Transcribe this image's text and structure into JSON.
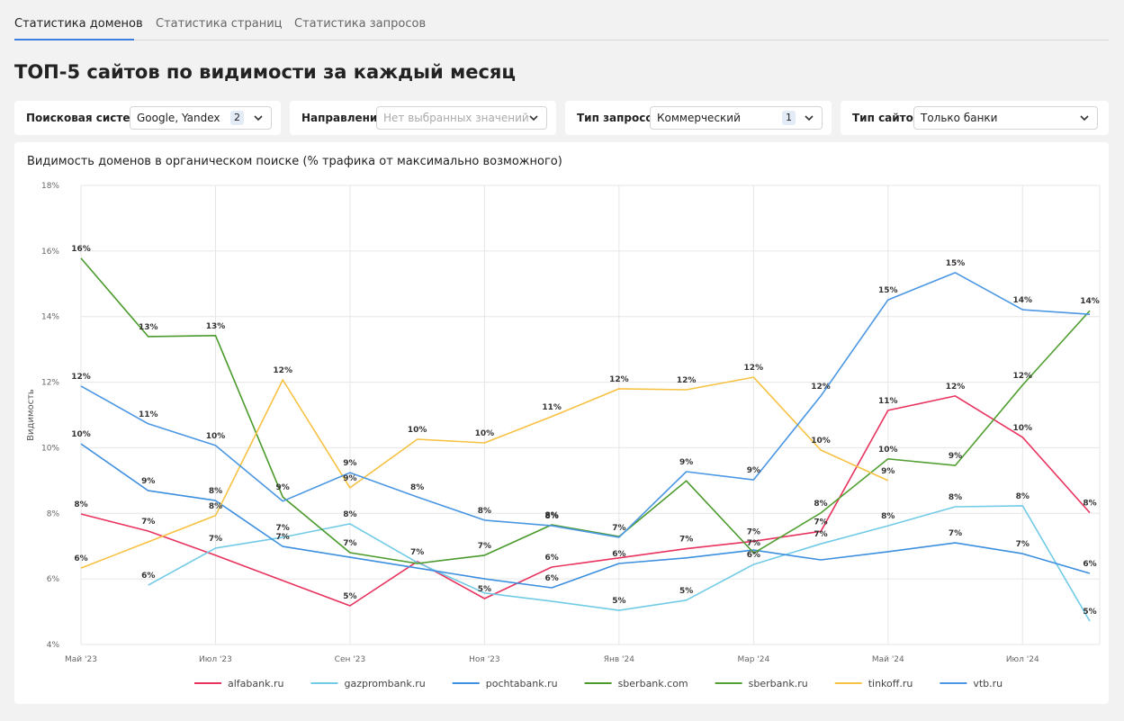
{
  "tabs": [
    "Статистика доменов",
    "Статистика страниц",
    "Статистика запросов"
  ],
  "header": {
    "title": "ТОП-5 сайтов по видимости за каждый месяц"
  },
  "filters": [
    {
      "label": "Поисковая система",
      "value": "Google, Yandex",
      "count": 2
    },
    {
      "label": "Направление",
      "placeholder": "Нет выбранных значений"
    },
    {
      "label": "Тип запросов",
      "value": "Коммерческий",
      "count": 1
    },
    {
      "label": "Тип сайтов",
      "value": "Только банки"
    }
  ],
  "chart_data": {
    "type": "line",
    "title": "Видимость доменов в органическом поиске (% трафика от максимально возможного)",
    "y_label": "Видимость",
    "categories": [
      "Май '23",
      null,
      "Июл '23",
      null,
      "Сен '23",
      null,
      "Ноя '23",
      null,
      "Янв '24",
      null,
      "Мар '24",
      null,
      "Май '24",
      null,
      "Июл '24",
      null
    ],
    "ylim": [
      4,
      18
    ],
    "yticks": [
      {
        "value": 4,
        "label": "4%"
      },
      {
        "value": 6,
        "label": "6%"
      },
      {
        "value": 8,
        "label": "8%"
      },
      {
        "value": 10,
        "label": "10%"
      },
      {
        "value": 12,
        "label": "12%"
      },
      {
        "value": 14,
        "label": "14%"
      },
      {
        "value": 16,
        "label": "16%"
      },
      {
        "value": 18,
        "label": "18%"
      }
    ],
    "grid": true,
    "legend": "bottom",
    "series": [
      {
        "name": "alfabank.ru",
        "color": "#e8335f",
        "values": [
          7.98,
          7.46,
          6.72,
          5.95,
          5.18,
          6.53,
          5.4,
          6.36,
          6.64,
          6.92,
          7.15,
          7.45,
          11.14,
          11.58,
          10.32,
          8.02
        ],
        "value_labels": [
          "8%",
          "7%",
          null,
          null,
          "5%",
          "7%",
          "5%",
          "6%",
          null,
          "7%",
          "7%",
          "7%",
          "11%",
          "12%",
          "10%",
          "8%"
        ]
      },
      {
        "name": "gazprombank.ru",
        "color": "#72cbe6",
        "values": [
          null,
          5.81,
          6.94,
          7.27,
          7.68,
          6.5,
          5.57,
          5.32,
          5.04,
          5.35,
          6.44,
          7.07,
          7.62,
          8.2,
          8.23,
          4.71
        ],
        "value_labels": [
          null,
          "6%",
          "7%",
          "7%",
          "8%",
          null,
          null,
          null,
          "5%",
          "5%",
          "6%",
          "7%",
          "8%",
          "8%",
          "8%",
          "5%"
        ]
      },
      {
        "name": "pochtabank.ru",
        "color": "#3d8fdf",
        "values": [
          10.12,
          8.69,
          8.39,
          6.99,
          6.66,
          6.33,
          6.0,
          5.73,
          6.47,
          6.64,
          6.88,
          6.58,
          6.83,
          7.1,
          6.77,
          6.17
        ],
        "value_labels": [
          "10%",
          "9%",
          "8%",
          "7%",
          null,
          null,
          null,
          "6%",
          "6%",
          null,
          null,
          null,
          null,
          "7%",
          "7%",
          "6%"
        ]
      },
      {
        "name": "sberbank.com",
        "color": "#4a9a2c",
        "values": [
          15.78,
          13.39,
          13.42,
          8.5,
          6.8,
          6.47,
          6.72,
          7.65,
          7.29,
          8.99,
          6.8,
          null,
          null,
          null,
          null,
          null
        ],
        "value_labels": [
          "16%",
          "13%",
          "13%",
          "9%",
          "7%",
          null,
          "7%",
          "8%",
          null,
          null,
          "7%",
          null,
          null,
          null,
          null,
          null
        ]
      },
      {
        "name": "sberbank.ru",
        "color": "#52a033",
        "values": [
          null,
          null,
          null,
          null,
          null,
          null,
          null,
          null,
          null,
          null,
          6.78,
          8.01,
          9.66,
          9.46,
          11.91,
          14.18
        ],
        "value_labels": [
          null,
          null,
          null,
          null,
          null,
          null,
          null,
          null,
          null,
          null,
          null,
          "8%",
          "10%",
          "9%",
          "12%",
          "14%"
        ]
      },
      {
        "name": "tinkoff.ru",
        "color": "#f7c243",
        "values": [
          6.33,
          7.13,
          7.93,
          12.07,
          8.78,
          10.26,
          10.15,
          10.95,
          11.8,
          11.77,
          12.15,
          9.93,
          9.0,
          null,
          null,
          null
        ],
        "value_labels": [
          "6%",
          null,
          "8%",
          "12%",
          "9%",
          "10%",
          "10%",
          "11%",
          "12%",
          "12%",
          "12%",
          "10%",
          "9%",
          null,
          null,
          null
        ]
      },
      {
        "name": "vtb.ru",
        "color": "#4b97e3",
        "values": [
          11.88,
          10.73,
          10.07,
          8.37,
          9.24,
          8.5,
          7.79,
          7.62,
          7.27,
          9.27,
          9.02,
          11.58,
          14.51,
          15.34,
          14.21,
          14.07
        ],
        "value_labels": [
          "12%",
          "11%",
          "10%",
          null,
          "9%",
          "8%",
          "8%",
          "8%",
          "7%",
          "9%",
          "9%",
          "12%",
          "15%",
          "15%",
          "14%",
          null
        ]
      }
    ]
  }
}
